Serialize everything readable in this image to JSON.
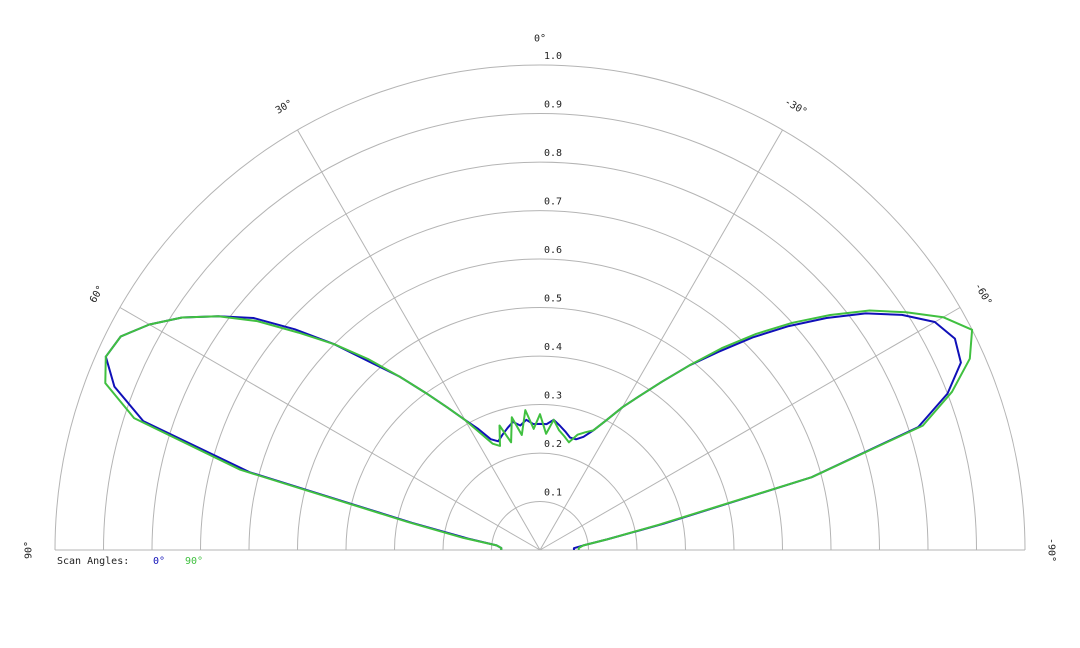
{
  "chart_data": {
    "type": "polar",
    "x": [
      90,
      87,
      84,
      81,
      78,
      75,
      72,
      69,
      66,
      63,
      60,
      57,
      54,
      51,
      48,
      45,
      42,
      39,
      36,
      33,
      30,
      27,
      24,
      21,
      18,
      15,
      12,
      9,
      6,
      3,
      0,
      -3,
      -6,
      -9,
      -12,
      -15,
      -18,
      -21,
      -24,
      -27,
      -30,
      -33,
      -36,
      -39,
      -42,
      -45,
      -48,
      -51,
      -54,
      -57,
      -60,
      -63,
      -66,
      -69,
      -72,
      -75,
      -78,
      -81,
      -84,
      -87,
      -90
    ],
    "series": [
      {
        "name": "0°",
        "color": "#1010b8",
        "values": [
          0.08,
          0.08,
          0.09,
          0.15,
          0.27,
          0.62,
          0.86,
          0.94,
          0.98,
          0.97,
          0.93,
          0.88,
          0.82,
          0.76,
          0.68,
          0.6,
          0.52,
          0.46,
          0.4,
          0.35,
          0.31,
          0.28,
          0.25,
          0.24,
          0.25,
          0.26,
          0.27,
          0.26,
          0.27,
          0.26,
          0.26,
          0.26,
          0.27,
          0.26,
          0.25,
          0.24,
          0.24,
          0.25,
          0.27,
          0.3,
          0.34,
          0.38,
          0.43,
          0.49,
          0.55,
          0.62,
          0.69,
          0.76,
          0.83,
          0.89,
          0.94,
          0.96,
          0.95,
          0.9,
          0.82,
          0.58,
          0.26,
          0.14,
          0.09,
          0.07,
          0.07
        ]
      },
      {
        "name": "90°",
        "color": "#40c040",
        "values": [
          0.08,
          0.08,
          0.09,
          0.16,
          0.28,
          0.64,
          0.88,
          0.96,
          0.98,
          0.97,
          0.93,
          0.88,
          0.82,
          0.75,
          0.67,
          0.6,
          0.53,
          0.46,
          0.4,
          0.35,
          0.31,
          0.27,
          0.24,
          0.23,
          0.27,
          0.23,
          0.28,
          0.24,
          0.29,
          0.25,
          0.28,
          0.24,
          0.27,
          0.25,
          0.24,
          0.23,
          0.25,
          0.26,
          0.27,
          0.3,
          0.34,
          0.38,
          0.43,
          0.49,
          0.56,
          0.63,
          0.7,
          0.77,
          0.84,
          0.9,
          0.96,
          1.0,
          0.97,
          0.91,
          0.83,
          0.58,
          0.25,
          0.14,
          0.09,
          0.08,
          0.08
        ]
      }
    ],
    "legend_title": "Scan Angles:",
    "rlim": [
      0,
      1
    ],
    "rticks": [
      0.1,
      0.2,
      0.3,
      0.4,
      0.5,
      0.6,
      0.7,
      0.8,
      0.9,
      {
        "value": 1,
        "label": "1.0"
      }
    ],
    "thetaticks": [
      {
        "value": 0,
        "label": "0°"
      },
      {
        "value": 30,
        "label": "30°"
      },
      {
        "value": 60,
        "label": "60°"
      },
      {
        "value": 90,
        "label": "90°"
      },
      {
        "value": -30,
        "label": "-30°"
      },
      {
        "value": -60,
        "label": "-60°"
      },
      {
        "value": -90,
        "label": "-90°"
      }
    ]
  }
}
